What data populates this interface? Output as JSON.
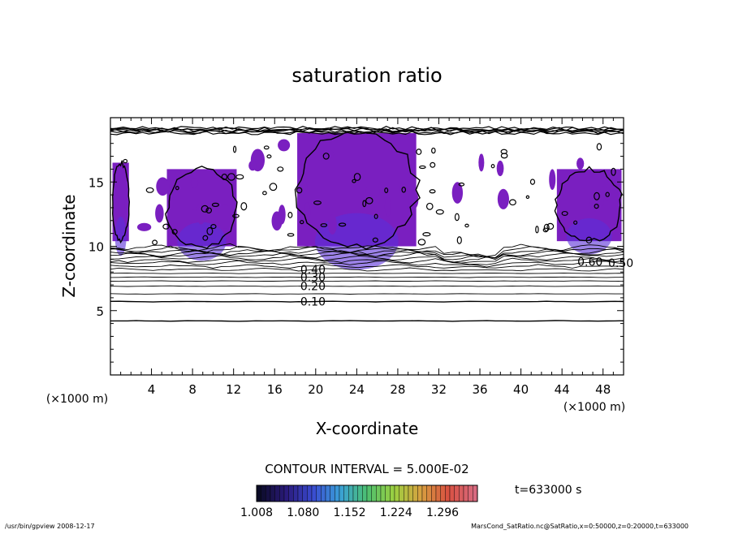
{
  "chart_data": {
    "type": "contour",
    "title": "saturation ratio",
    "xlabel": "X-coordinate",
    "ylabel": "Z-coordinate",
    "x_unit": "(×1000 m)",
    "z_unit": "(×1000 m)",
    "xlim": [
      0,
      50
    ],
    "ylim": [
      0,
      20
    ],
    "x_ticks": [
      4,
      8,
      12,
      16,
      20,
      24,
      28,
      32,
      36,
      40,
      44,
      48
    ],
    "y_ticks": [
      5,
      10,
      15
    ],
    "contour_interval_text": "CONTOUR INTERVAL = 5.000E-02",
    "contour_interval": 0.05,
    "contour_labels": [
      {
        "text": "0.10",
        "x": 18.5,
        "z": 5.7
      },
      {
        "text": "0.20",
        "x": 18.5,
        "z": 6.9
      },
      {
        "text": "0.30",
        "x": 18.5,
        "z": 7.6
      },
      {
        "text": "0.40",
        "x": 18.5,
        "z": 8.2
      },
      {
        "text": "0.50",
        "x": 48.5,
        "z": 8.7
      },
      {
        "text": "0.60",
        "x": 45.5,
        "z": 8.8
      }
    ],
    "shaded_regions": [
      {
        "x": [
          0.2,
          1.8
        ],
        "z": [
          10.4,
          16.5
        ]
      },
      {
        "x": [
          5.5,
          12.3
        ],
        "z": [
          10.0,
          16.0
        ]
      },
      {
        "x": [
          18.2,
          29.8
        ],
        "z": [
          10.0,
          18.8
        ]
      },
      {
        "x": [
          43.5,
          49.8
        ],
        "z": [
          10.4,
          16.0
        ]
      }
    ],
    "colorbar": {
      "ticks": [
        "1.008",
        "1.080",
        "1.152",
        "1.224",
        "1.296"
      ],
      "min": 1.008,
      "max": 1.35,
      "colors": [
        "#0b0b26",
        "#2a1a7a",
        "#3a4ad0",
        "#3aa0d8",
        "#4cc070",
        "#9cd040",
        "#d8a040",
        "#d85040",
        "#d86a80"
      ]
    },
    "time_label": "t=633000 s"
  },
  "footer": {
    "left": "/usr/bin/gpview   2008-12-17",
    "right": "MarsCond_SatRatio.nc@SatRatio,x=0:50000,z=0:20000,t=633000"
  }
}
